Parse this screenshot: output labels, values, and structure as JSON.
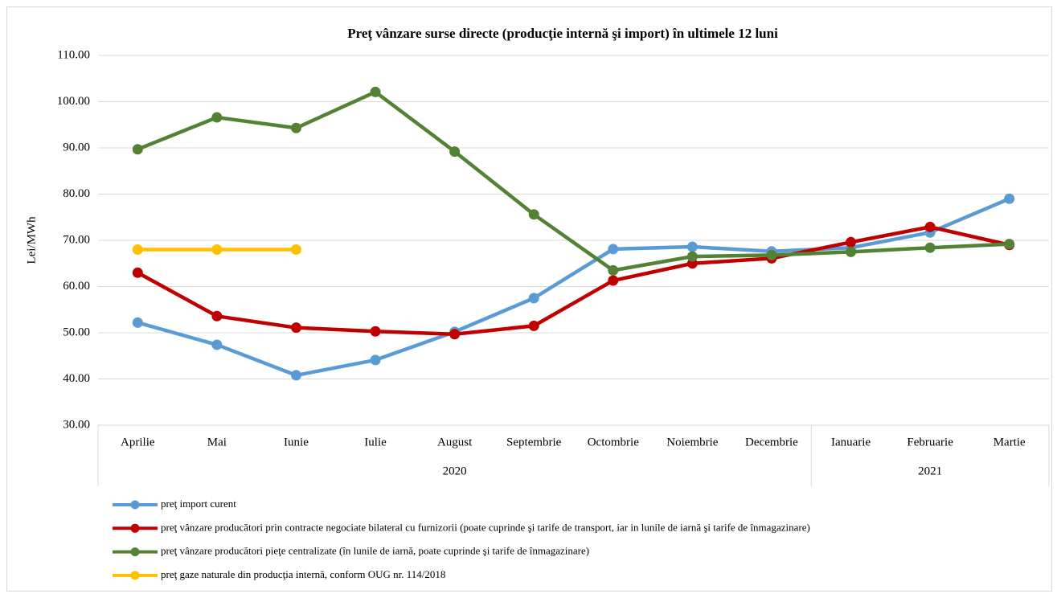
{
  "chart_data": {
    "type": "line",
    "title": "Preţ vânzare surse directe (producţie internă şi import) în ultimele 12 luni",
    "y_label": "Lei/MWh",
    "categories": [
      "Aprilie",
      "Mai",
      "Iunie",
      "Iulie",
      "August",
      "Septembrie",
      "Octombrie",
      "Noiembrie",
      "Decembrie",
      "Ianuarie",
      "Februarie",
      "Martie"
    ],
    "groups": [
      {
        "label": "2020",
        "count": 9
      },
      {
        "label": "2021",
        "count": 3
      }
    ],
    "series": [
      {
        "name": "preţ import curent",
        "color": "#5b9bd5",
        "values": [
          52.2,
          47.4,
          40.8,
          44.1,
          50.2,
          57.5,
          68.1,
          68.6,
          67.6,
          68.4,
          71.7,
          79.0
        ]
      },
      {
        "name": "preţ vânzare producători prin contracte negociate bilateral cu furnizorii (poate cuprinde şi tarife de transport, iar in lunile de iarnă şi tarife de înmagazinare)",
        "color": "#c00000",
        "values": [
          63.0,
          53.6,
          51.1,
          50.3,
          49.7,
          51.5,
          61.3,
          65.0,
          66.1,
          69.6,
          72.9,
          69.0
        ]
      },
      {
        "name": "preţ vânzare producători pieţe centralizate (în lunile de iarnă, poate cuprinde şi tarife de înmagazinare)",
        "color": "#548235",
        "values": [
          89.7,
          96.6,
          94.3,
          102.1,
          89.2,
          75.6,
          63.5,
          66.5,
          66.8,
          67.5,
          68.4,
          69.2
        ]
      },
      {
        "name": "preţ gaze naturale din producţia internă, conform OUG nr. 114/2018",
        "color": "#ffc000",
        "values": [
          68.0,
          68.0,
          68.0,
          null,
          null,
          null,
          null,
          null,
          null,
          null,
          null,
          null
        ]
      }
    ],
    "ylim": [
      30,
      110
    ],
    "yticks": [
      {
        "value": 30,
        "label": "30.00"
      },
      {
        "value": 40,
        "label": "40.00"
      },
      {
        "value": 50,
        "label": "50.00"
      },
      {
        "value": 60,
        "label": "60.00"
      },
      {
        "value": 70,
        "label": "70.00"
      },
      {
        "value": 80,
        "label": "80.00"
      },
      {
        "value": 90,
        "label": "90.00"
      },
      {
        "value": 100,
        "label": "100.00"
      },
      {
        "value": 110,
        "label": "110.00"
      }
    ],
    "grid": true,
    "legend": "bottom"
  }
}
